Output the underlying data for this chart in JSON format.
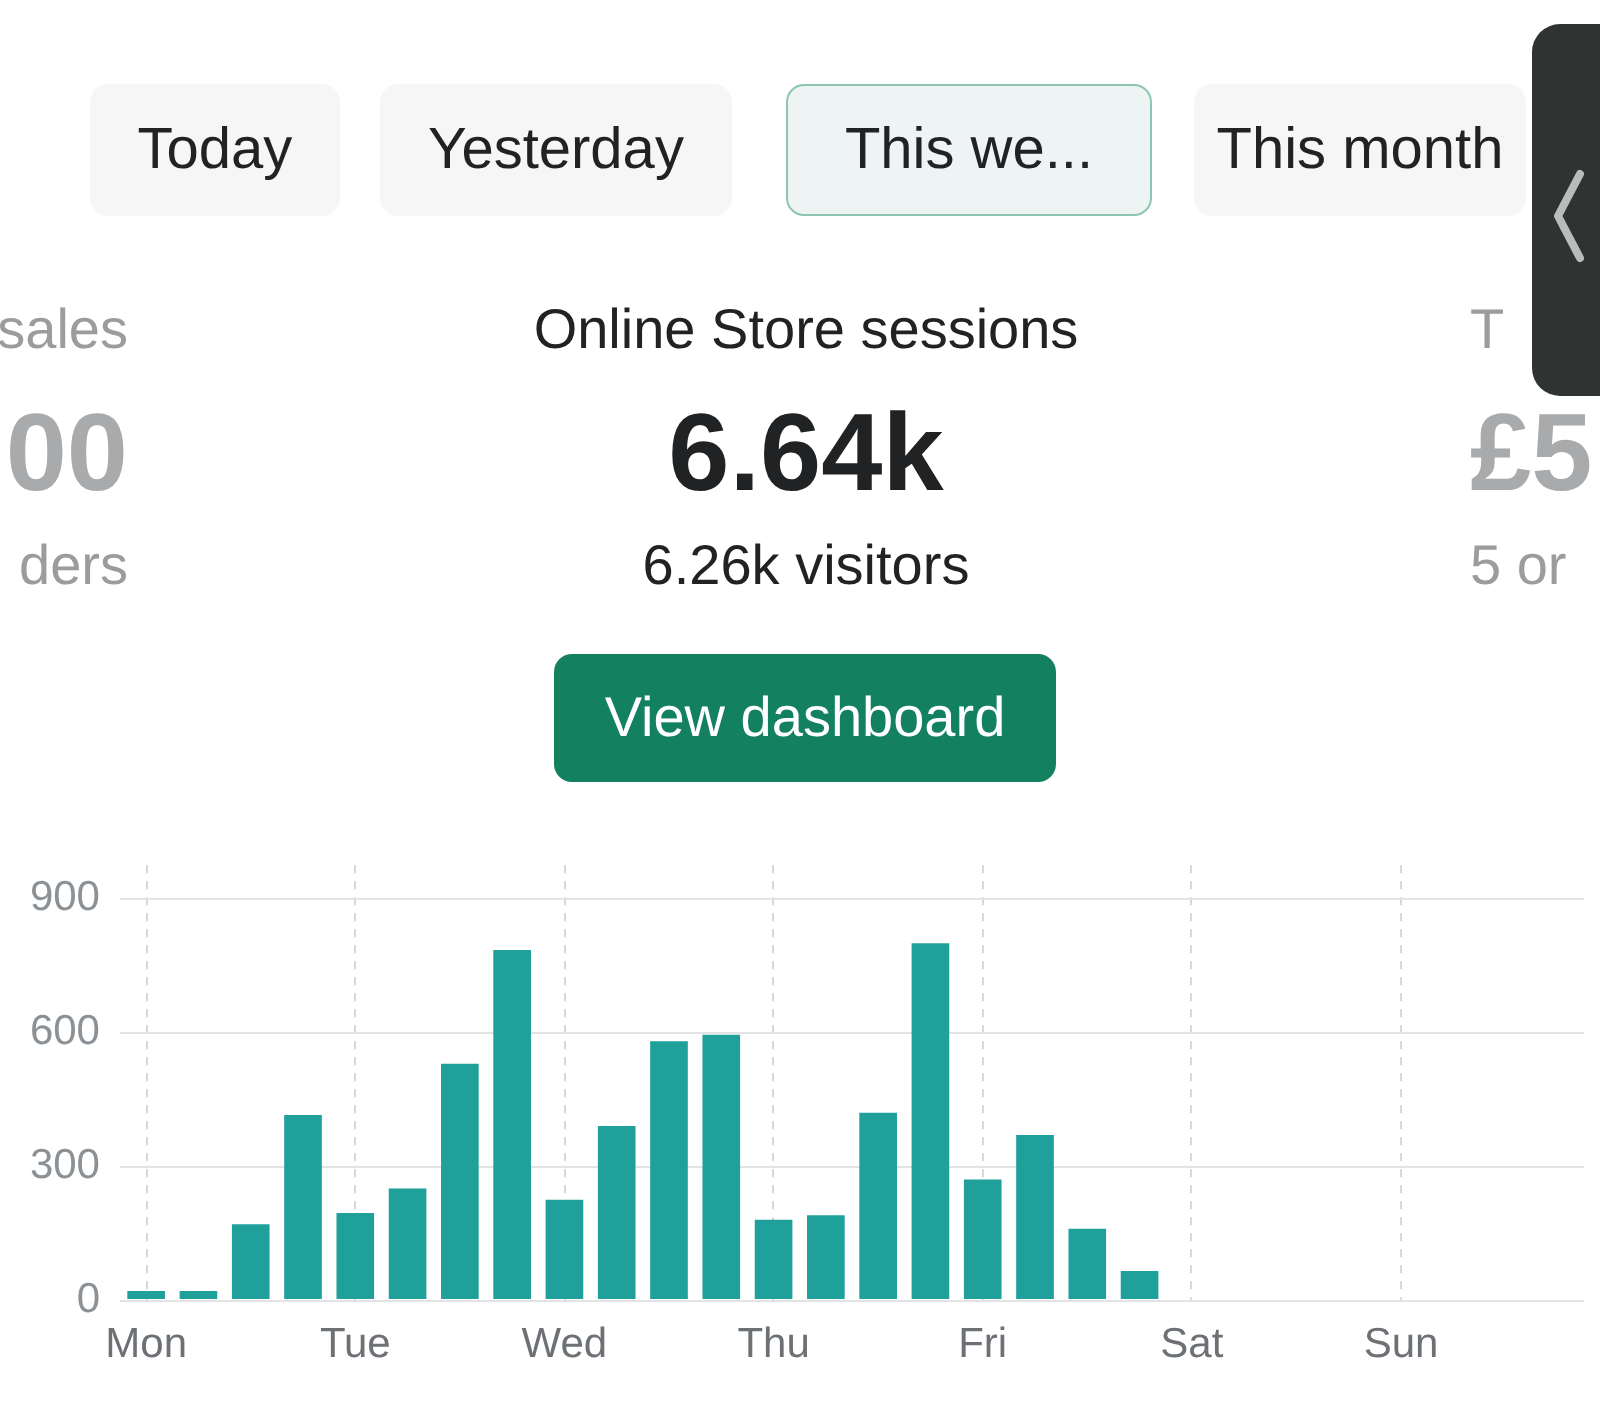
{
  "chart_data": {
    "type": "bar",
    "title": "Online Store sessions",
    "subtitle": "6.64k",
    "annotations": [
      "Today",
      "Yesterday",
      "This we...",
      "This month",
      "sales",
      "00",
      "ders",
      "6.26k visitors",
      "T",
      "£5",
      "5 or",
      "View dashboard"
    ],
    "categories": [
      "Mon",
      null,
      null,
      null,
      "Tue",
      null,
      null,
      null,
      "Wed",
      null,
      null,
      null,
      "Thu",
      null,
      null,
      null,
      "Fri",
      null,
      null,
      null,
      "Sat",
      null,
      null,
      null,
      "Sun",
      null,
      null,
      null
    ],
    "values": [
      20,
      20,
      170,
      415,
      195,
      250,
      530,
      785,
      225,
      390,
      580,
      595,
      180,
      190,
      420,
      800,
      270,
      370,
      160,
      65,
      null,
      null,
      null,
      null,
      null,
      null,
      null,
      null
    ],
    "color": "#1fa09b",
    "ylim": [
      0,
      975
    ],
    "yticks": [
      0,
      300,
      600,
      900
    ],
    "grid": true
  }
}
